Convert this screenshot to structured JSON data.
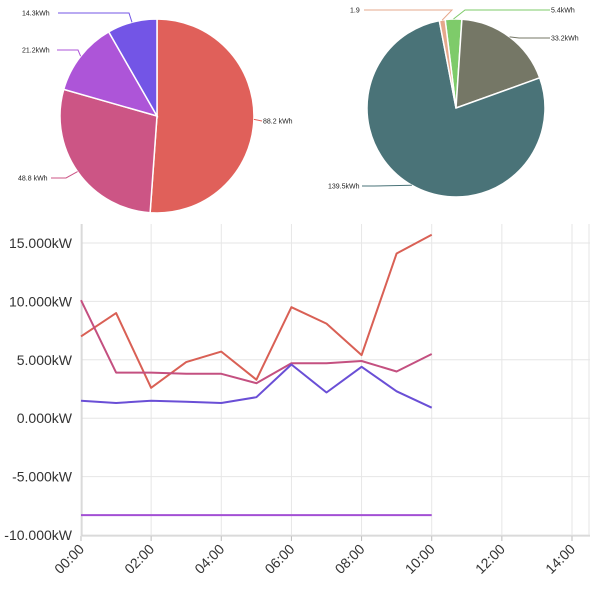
{
  "chart_data": [
    {
      "type": "pie",
      "slices": [
        {
          "label": "88.2 kWh",
          "value": 88.2,
          "color": "#e0605a"
        },
        {
          "label": "48.8 kWh",
          "value": 48.8,
          "color": "#cc5585"
        },
        {
          "label": "21.2kWh",
          "value": 21.2,
          "color": "#ad55d8"
        },
        {
          "label": "14.3kWh",
          "value": 14.3,
          "color": "#7355e6"
        }
      ]
    },
    {
      "type": "pie",
      "slices": [
        {
          "label": "5.4kWh",
          "value": 5.4,
          "color": "#7ecb6a"
        },
        {
          "label": "33.2kWh",
          "value": 33.2,
          "color": "#757766"
        },
        {
          "label": "139.5kWh",
          "value": 139.5,
          "color": "#4a7378"
        },
        {
          "label": "1.9",
          "value": 1.9,
          "color": "#e6a88c"
        }
      ]
    },
    {
      "type": "line",
      "grid": true,
      "x_ticks": [
        "00:00",
        "02:00",
        "04:00",
        "06:00",
        "08:00",
        "10:00",
        "12:00",
        "14:00"
      ],
      "x_range": [
        0,
        14
      ],
      "ylim": [
        -10,
        17
      ],
      "y_ticks": [
        {
          "value": -10,
          "label": "-10.000kW"
        },
        {
          "value": -5,
          "label": "-5.000kW"
        },
        {
          "value": 0,
          "label": "0.000kW"
        },
        {
          "value": 5,
          "label": "5.000kW"
        },
        {
          "value": 10,
          "label": "10.000kW"
        },
        {
          "value": 15,
          "label": "15.000kW"
        }
      ],
      "series": [
        {
          "color": "#d96055",
          "x": [
            0,
            1,
            2,
            3,
            4,
            5,
            6,
            7,
            8,
            9,
            10
          ],
          "y": [
            7.0,
            9.0,
            2.6,
            4.8,
            5.7,
            3.3,
            9.5,
            8.1,
            5.4,
            14.1,
            15.7
          ]
        },
        {
          "color": "#c45080",
          "x": [
            0,
            1,
            2,
            3,
            4,
            5,
            6,
            7,
            8,
            9,
            10
          ],
          "y": [
            10.1,
            3.9,
            3.9,
            3.8,
            3.8,
            3.0,
            4.7,
            4.7,
            4.9,
            4.0,
            5.5
          ]
        },
        {
          "color": "#6a4fd6",
          "x": [
            0,
            1,
            2,
            3,
            4,
            5,
            6,
            7,
            8,
            9,
            10
          ],
          "y": [
            1.5,
            1.3,
            1.5,
            1.4,
            1.3,
            1.8,
            4.6,
            2.2,
            4.4,
            2.3,
            0.9
          ]
        },
        {
          "color": "#a24fd4",
          "x": [
            0,
            1,
            2,
            3,
            4,
            5,
            6,
            7,
            8,
            9,
            10
          ],
          "y": [
            -8.3,
            -8.3,
            -8.3,
            -8.3,
            -8.3,
            -8.3,
            -8.3,
            -8.3,
            -8.3,
            -8.3,
            -8.3
          ]
        }
      ]
    }
  ]
}
